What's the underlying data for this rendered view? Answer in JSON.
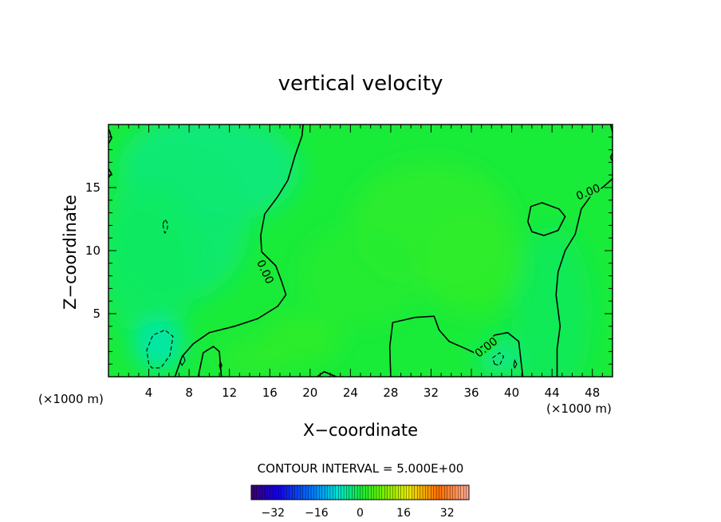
{
  "chart_data": {
    "type": "heatmap",
    "title": "vertical velocity",
    "xlabel": "X−coordinate",
    "ylabel": "Z−coordinate",
    "x_unit": "(×1000 m)",
    "x_unit_secondary": "(×1000 m)",
    "xlim": [
      0,
      50
    ],
    "ylim": [
      0,
      20
    ],
    "x_ticks": [
      4,
      8,
      12,
      16,
      20,
      24,
      28,
      32,
      36,
      40,
      44,
      48
    ],
    "x_tick_labels": [
      "4",
      "8",
      "12",
      "16",
      "20",
      "24",
      "28",
      "32",
      "36",
      "40",
      "44",
      "48"
    ],
    "y_ticks": [
      5,
      10,
      15
    ],
    "y_tick_labels": [
      "5",
      "10",
      "15"
    ],
    "contour_interval_text": "CONTOUR INTERVAL = 5.000E+00",
    "contour_labels": [
      "0.00",
      "0.00",
      "0.00"
    ],
    "colorbar": {
      "range": [
        -40,
        40
      ],
      "ticks": [
        -32,
        -16,
        0,
        16,
        32
      ],
      "tick_labels": [
        "−32",
        "−16",
        "0",
        "16",
        "32"
      ]
    },
    "field_description_value_range": [
      -8,
      4
    ],
    "zero_contours": [
      [
        [
          19.3,
          20
        ],
        [
          19.2,
          19.1
        ],
        [
          18.5,
          17.5
        ],
        [
          17.8,
          15.6
        ],
        [
          16.8,
          14.3
        ],
        [
          15.5,
          12.9
        ],
        [
          15.1,
          11.2
        ],
        [
          15.2,
          9.9
        ],
        [
          16.6,
          8.8
        ],
        [
          17.2,
          7.5
        ],
        [
          17.6,
          6.5
        ],
        [
          16.8,
          5.6
        ],
        [
          14.8,
          4.6
        ],
        [
          12.5,
          4.0
        ],
        [
          10.0,
          3.5
        ],
        [
          8.4,
          2.6
        ],
        [
          7.3,
          1.6
        ],
        [
          6.6,
          0
        ]
      ],
      [
        [
          8.9,
          0
        ],
        [
          9.4,
          1.9
        ],
        [
          10.4,
          2.4
        ],
        [
          11.0,
          2.0
        ],
        [
          11.2,
          0
        ]
      ],
      [
        [
          20.7,
          0
        ],
        [
          21.4,
          0.4
        ],
        [
          22.6,
          0
        ]
      ],
      [
        [
          28.0,
          0
        ],
        [
          27.9,
          2.4
        ],
        [
          28.2,
          4.3
        ],
        [
          30.4,
          4.7
        ],
        [
          32.3,
          4.8
        ],
        [
          32.8,
          3.7
        ],
        [
          33.8,
          2.8
        ],
        [
          35.5,
          2.2
        ],
        [
          36.3,
          1.9
        ],
        [
          37.2,
          2.5
        ],
        [
          38.3,
          3.3
        ],
        [
          39.6,
          3.5
        ],
        [
          40.7,
          2.8
        ],
        [
          41.1,
          0
        ]
      ],
      [
        [
          44.5,
          0
        ],
        [
          44.5,
          2.2
        ],
        [
          44.8,
          4.0
        ],
        [
          44.4,
          6.5
        ],
        [
          44.6,
          8.3
        ],
        [
          45.3,
          10.0
        ],
        [
          46.3,
          11.3
        ],
        [
          46.9,
          13.3
        ],
        [
          48.0,
          14.5
        ],
        [
          49.0,
          15.0
        ],
        [
          50,
          15.7
        ]
      ],
      [
        [
          41.6,
          12.3
        ],
        [
          41.9,
          13.5
        ],
        [
          43.0,
          13.8
        ],
        [
          44.7,
          13.3
        ],
        [
          45.3,
          12.7
        ],
        [
          44.6,
          11.6
        ],
        [
          43.2,
          11.2
        ],
        [
          42.0,
          11.5
        ],
        [
          41.6,
          12.3
        ]
      ],
      [
        [
          0,
          18.5
        ],
        [
          0.3,
          18.9
        ],
        [
          0.1,
          19.5
        ],
        [
          0,
          19.6
        ]
      ],
      [
        [
          0,
          16.5
        ],
        [
          0.3,
          16.1
        ],
        [
          0,
          15.8
        ]
      ],
      [
        [
          49.8,
          20
        ],
        [
          50,
          19.4
        ]
      ],
      [
        [
          50,
          17.1
        ],
        [
          49.8,
          17.4
        ],
        [
          50,
          17.7
        ]
      ]
    ],
    "dashed_contours": [
      [
        [
          4.0,
          1.0
        ],
        [
          3.8,
          2.1
        ],
        [
          4.4,
          3.3
        ],
        [
          5.6,
          3.7
        ],
        [
          6.4,
          3.2
        ],
        [
          6.1,
          1.7
        ],
        [
          5.2,
          0.7
        ],
        [
          4.3,
          0.7
        ],
        [
          4.0,
          1.0
        ]
      ],
      [
        [
          5.4,
          12.1
        ],
        [
          5.6,
          12.5
        ],
        [
          5.9,
          12.1
        ],
        [
          5.8,
          11.6
        ],
        [
          5.6,
          11.4
        ],
        [
          5.5,
          11.6
        ],
        [
          5.4,
          12.1
        ]
      ],
      [
        [
          38.3,
          1.0
        ],
        [
          38.1,
          1.5
        ],
        [
          38.8,
          1.9
        ],
        [
          39.2,
          1.6
        ],
        [
          38.8,
          0.9
        ],
        [
          38.3,
          1.0
        ]
      ]
    ],
    "small_contours": [
      [
        [
          7.1,
          1.2
        ],
        [
          7.4,
          1.7
        ],
        [
          7.6,
          1.3
        ],
        [
          7.3,
          0.9
        ],
        [
          7.1,
          1.2
        ]
      ],
      [
        [
          11.0,
          0.9
        ],
        [
          11.1,
          1.2
        ],
        [
          11.25,
          0.9
        ],
        [
          11.1,
          0.6
        ],
        [
          11.0,
          0.9
        ]
      ],
      [
        [
          40.2,
          0.9
        ],
        [
          40.3,
          1.3
        ],
        [
          40.5,
          1.0
        ],
        [
          40.3,
          0.7
        ],
        [
          40.2,
          0.9
        ]
      ]
    ],
    "anomalies": [
      {
        "x": 10,
        "z": 16.5,
        "rx": 9,
        "rz": 4.5,
        "value": -4.5
      },
      {
        "x": 7,
        "z": 12,
        "rx": 7,
        "rz": 6,
        "value": -3.5
      },
      {
        "x": 4,
        "z": 9,
        "rx": 5,
        "rz": 6,
        "value": -2.5
      },
      {
        "x": 5,
        "z": 2.5,
        "rx": 2.5,
        "rz": 2.0,
        "value": -8
      },
      {
        "x": 38.8,
        "z": 1.5,
        "rx": 2.0,
        "rz": 1.4,
        "value": -6
      },
      {
        "x": 44,
        "z": 5,
        "rx": 4,
        "rz": 7,
        "value": -2
      },
      {
        "x": 32,
        "z": 12,
        "rx": 8,
        "rz": 5,
        "value": 2.5
      },
      {
        "x": 25,
        "z": 8,
        "rx": 6,
        "rz": 4,
        "value": 2
      },
      {
        "x": 19,
        "z": 3,
        "rx": 4,
        "rz": 2,
        "value": 3
      },
      {
        "x": 15,
        "z": 1.5,
        "rx": 4,
        "rz": 1.5,
        "value": 2.5
      },
      {
        "x": 36,
        "z": 9,
        "rx": 5,
        "rz": 4,
        "value": 3
      }
    ]
  }
}
